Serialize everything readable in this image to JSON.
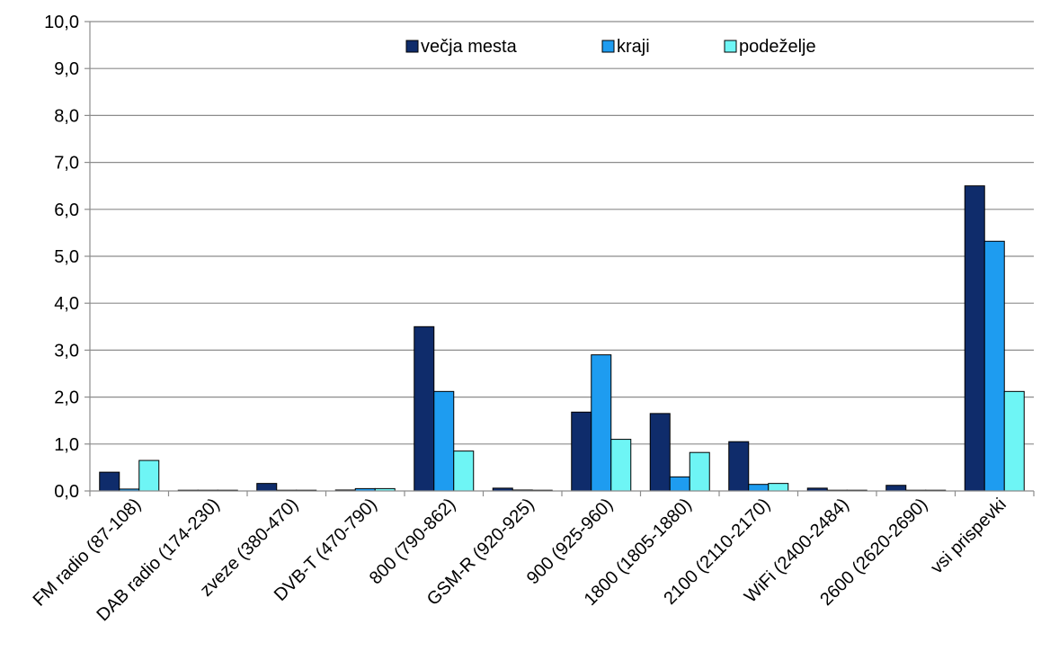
{
  "chart_data": {
    "type": "bar",
    "categories": [
      "FM radio (87-108)",
      "DAB radio (174-230)",
      "zveze (380-470)",
      "DVB-T (470-790)",
      "800 (790-862)",
      "GSM-R (920-925)",
      "900 (925-960)",
      "1800 (1805-1880)",
      "2100 (2110-2170)",
      "WiFi (2400-2484)",
      "2600 (2620-2690)",
      "vsi prispevki"
    ],
    "series": [
      {
        "name": "večja mesta",
        "color": "#0f2c6b",
        "values": [
          0.4,
          0.0,
          0.16,
          0.02,
          3.5,
          0.06,
          1.68,
          1.65,
          1.05,
          0.06,
          0.12,
          6.5
        ]
      },
      {
        "name": "kraji",
        "color": "#1e9cf0",
        "values": [
          0.04,
          0.0,
          0.0,
          0.05,
          2.12,
          0.02,
          2.9,
          0.3,
          0.14,
          0.0,
          0.0,
          5.32
        ]
      },
      {
        "name": "podeželje",
        "color": "#6ef5f5",
        "values": [
          0.65,
          0.0,
          0.0,
          0.05,
          0.85,
          0.0,
          1.1,
          0.82,
          0.16,
          0.0,
          0.0,
          2.12
        ]
      }
    ],
    "yticks": [
      "0,0",
      "1,0",
      "2,0",
      "3,0",
      "4,0",
      "5,0",
      "6,0",
      "7,0",
      "8,0",
      "9,0",
      "10,0"
    ],
    "ylim": [
      0,
      10
    ],
    "grid": true,
    "legend_position": "top-center"
  }
}
